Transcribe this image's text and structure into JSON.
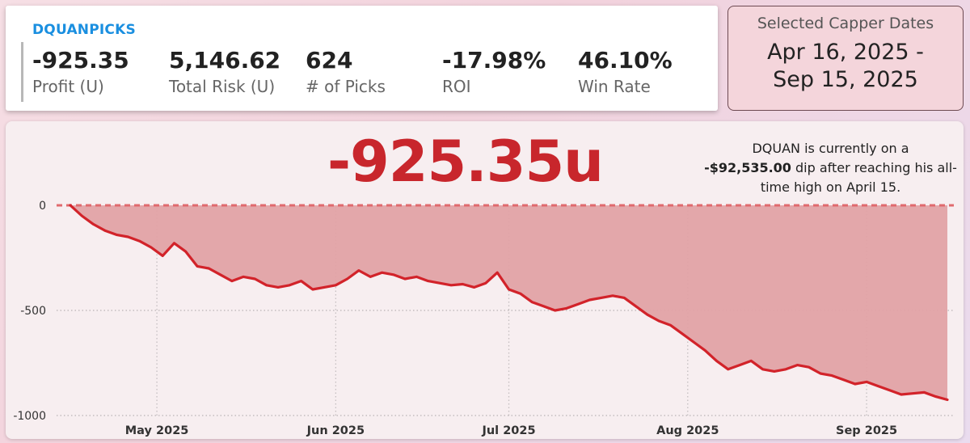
{
  "header": {
    "capper_name": "DQUANPICKS",
    "metrics": [
      {
        "value": "-925.35",
        "label": "Profit (U)"
      },
      {
        "value": "5,146.62",
        "label": "Total Risk (U)"
      },
      {
        "value": "624",
        "label": "# of Picks"
      },
      {
        "value": "-17.98%",
        "label": "ROI"
      },
      {
        "value": "46.10%",
        "label": "Win Rate"
      }
    ]
  },
  "date_filter": {
    "title": "Selected Capper Dates",
    "start": "Apr 16, 2025 -",
    "end": "Sep 15, 2025"
  },
  "headline": "-925.35u",
  "note": {
    "pre": "DQUAN is currently on a",
    "amount": "-$92,535.00",
    "post": " dip after reaching his all-time high on April 15."
  },
  "colors": {
    "accent_blue": "#1a8fe0",
    "negative_red": "#c8262c",
    "fill_red": "#e2a2a5",
    "line_red": "#d2232a"
  },
  "chart_data": {
    "type": "area",
    "title": "",
    "xlabel": "",
    "ylabel": "",
    "ylim": [
      -1000,
      0
    ],
    "yticks": [
      "0",
      "-500",
      "-1000"
    ],
    "ytick_values": [
      0,
      -500,
      -1000
    ],
    "xticks": [
      "May 2025",
      "Jun 2025",
      "Jul 2025",
      "Aug 2025",
      "Sep 2025"
    ],
    "xtick_dates": [
      "2025-05-01",
      "2025-06-01",
      "2025-07-01",
      "2025-08-01",
      "2025-09-01"
    ],
    "reference_line": 0,
    "grid": true,
    "series": [
      {
        "x": [
          "2025-04-16",
          "2025-04-18",
          "2025-04-20",
          "2025-04-22",
          "2025-04-24",
          "2025-04-26",
          "2025-04-28",
          "2025-04-30",
          "2025-05-02",
          "2025-05-04",
          "2025-05-06",
          "2025-05-08",
          "2025-05-10",
          "2025-05-12",
          "2025-05-14",
          "2025-05-16",
          "2025-05-18",
          "2025-05-20",
          "2025-05-22",
          "2025-05-24",
          "2025-05-26",
          "2025-05-28",
          "2025-05-30",
          "2025-06-01",
          "2025-06-03",
          "2025-06-05",
          "2025-06-07",
          "2025-06-09",
          "2025-06-11",
          "2025-06-13",
          "2025-06-15",
          "2025-06-17",
          "2025-06-19",
          "2025-06-21",
          "2025-06-23",
          "2025-06-25",
          "2025-06-27",
          "2025-06-29",
          "2025-07-01",
          "2025-07-03",
          "2025-07-05",
          "2025-07-07",
          "2025-07-09",
          "2025-07-11",
          "2025-07-13",
          "2025-07-15",
          "2025-07-17",
          "2025-07-19",
          "2025-07-21",
          "2025-07-23",
          "2025-07-25",
          "2025-07-27",
          "2025-07-29",
          "2025-07-31",
          "2025-08-02",
          "2025-08-04",
          "2025-08-06",
          "2025-08-08",
          "2025-08-10",
          "2025-08-12",
          "2025-08-14",
          "2025-08-16",
          "2025-08-18",
          "2025-08-20",
          "2025-08-22",
          "2025-08-24",
          "2025-08-26",
          "2025-08-28",
          "2025-08-30",
          "2025-09-01",
          "2025-09-03",
          "2025-09-05",
          "2025-09-07",
          "2025-09-09",
          "2025-09-11",
          "2025-09-13",
          "2025-09-15"
        ],
        "values": [
          0,
          -50,
          -90,
          -120,
          -140,
          -150,
          -170,
          -200,
          -240,
          -180,
          -220,
          -290,
          -300,
          -330,
          -360,
          -340,
          -350,
          -380,
          -390,
          -380,
          -360,
          -400,
          -390,
          -380,
          -350,
          -310,
          -340,
          -320,
          -330,
          -350,
          -340,
          -360,
          -370,
          -380,
          -375,
          -390,
          -370,
          -320,
          -400,
          -420,
          -460,
          -480,
          -500,
          -490,
          -470,
          -450,
          -440,
          -430,
          -440,
          -480,
          -520,
          -550,
          -570,
          -610,
          -650,
          -690,
          -740,
          -780,
          -760,
          -740,
          -780,
          -790,
          -780,
          -760,
          -770,
          -800,
          -810,
          -830,
          -850,
          -840,
          -860,
          -880,
          -900,
          -895,
          -890,
          -910,
          -925
        ]
      }
    ]
  }
}
